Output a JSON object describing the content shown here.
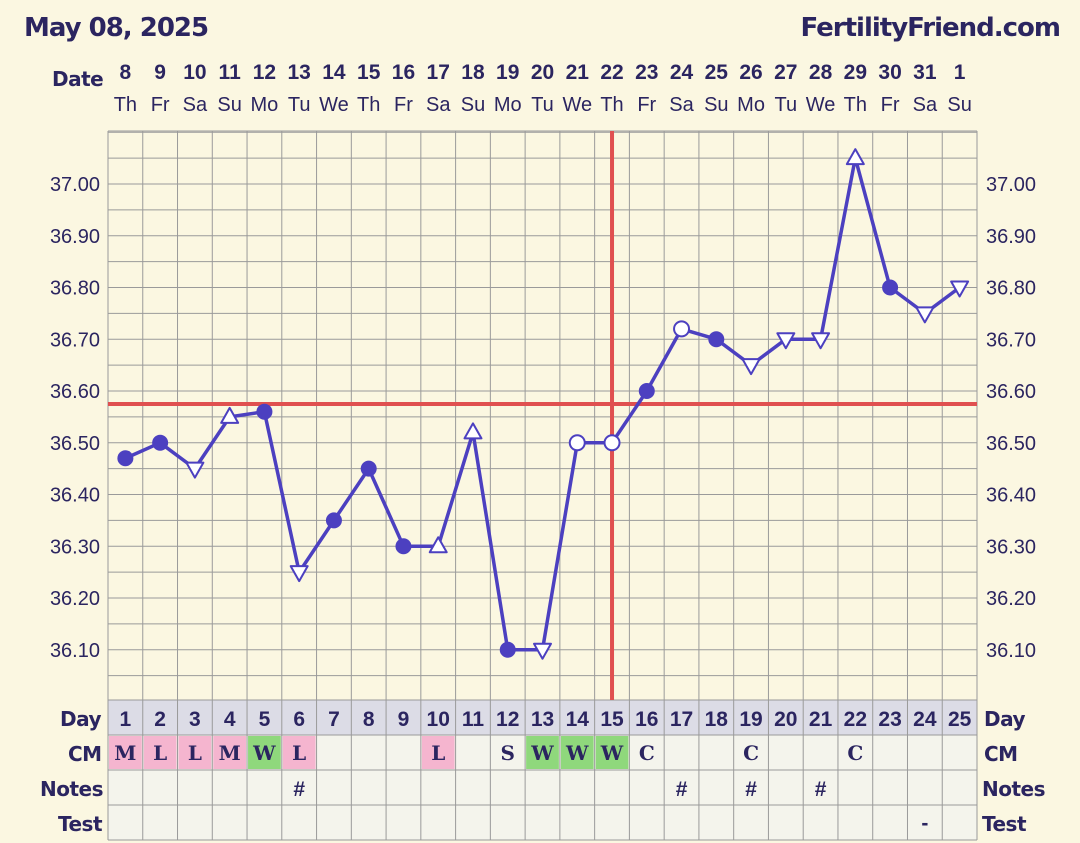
{
  "header": {
    "date": "May 08, 2025",
    "brand": "FertilityFriend.com"
  },
  "labels": {
    "date": "Date",
    "day": "Day",
    "cm": "CM",
    "notes": "Notes",
    "test": "Test"
  },
  "colors": {
    "background": "#fbf7e1",
    "grid": "#9a9a9a",
    "line": "#4c40c0",
    "coverline": "#e05050",
    "cm_pink": "#f5b5cf",
    "cm_green": "#8fd87c",
    "day_row": "#dcdce6",
    "text": "#2b2560"
  },
  "chart_data": {
    "type": "line",
    "dates": [
      "8",
      "9",
      "10",
      "11",
      "12",
      "13",
      "14",
      "15",
      "16",
      "17",
      "18",
      "19",
      "20",
      "21",
      "22",
      "23",
      "24",
      "25",
      "26",
      "27",
      "28",
      "29",
      "30",
      "31",
      "1"
    ],
    "weekdays": [
      "Th",
      "Fr",
      "Sa",
      "Su",
      "Mo",
      "Tu",
      "We",
      "Th",
      "Fr",
      "Sa",
      "Su",
      "Mo",
      "Tu",
      "We",
      "Th",
      "Fr",
      "Sa",
      "Su",
      "Mo",
      "Tu",
      "We",
      "Th",
      "Fr",
      "Sa",
      "Su"
    ],
    "cycle_days": [
      1,
      2,
      3,
      4,
      5,
      6,
      7,
      8,
      9,
      10,
      11,
      12,
      13,
      14,
      15,
      16,
      17,
      18,
      19,
      20,
      21,
      22,
      23,
      24,
      25
    ],
    "temperatures": [
      36.47,
      36.5,
      36.45,
      36.55,
      36.56,
      36.25,
      36.35,
      36.45,
      36.3,
      36.3,
      36.52,
      36.1,
      36.1,
      36.5,
      36.5,
      36.6,
      36.72,
      36.7,
      36.65,
      36.7,
      36.7,
      37.05,
      36.8,
      36.75,
      36.8
    ],
    "markers": [
      "dot",
      "dot",
      "tri-down",
      "tri-up",
      "dot",
      "tri-down",
      "dot",
      "dot",
      "dot",
      "tri-up",
      "tri-up",
      "dot",
      "tri-down",
      "circle",
      "circle",
      "dot",
      "circle",
      "dot",
      "tri-down",
      "tri-down",
      "tri-down",
      "tri-up",
      "dot",
      "tri-down",
      "tri-down"
    ],
    "yticks": [
      "37.00",
      "36.90",
      "36.80",
      "36.70",
      "36.60",
      "36.50",
      "36.40",
      "36.30",
      "36.20",
      "36.10"
    ],
    "ytick_values": [
      37.0,
      36.9,
      36.8,
      36.7,
      36.6,
      36.5,
      36.4,
      36.3,
      36.2,
      36.1
    ],
    "ylim": [
      36.0,
      37.1
    ],
    "coverline": 36.575,
    "ovulation_day": 15,
    "cm": [
      "M",
      "L",
      "L",
      "M",
      "W",
      "L",
      "",
      "",
      "",
      "L",
      "",
      "S",
      "W",
      "W",
      "W",
      "C",
      "",
      "",
      "C",
      "",
      "",
      "C",
      "",
      "",
      ""
    ],
    "cm_colors": [
      "pink",
      "pink",
      "pink",
      "pink",
      "green",
      "pink",
      "",
      "",
      "",
      "pink",
      "",
      "",
      "green",
      "green",
      "green",
      "",
      "",
      "",
      "",
      "",
      "",
      "",
      "",
      "",
      ""
    ],
    "notes": [
      "",
      "",
      "",
      "",
      "",
      "#",
      "",
      "",
      "",
      "",
      "",
      "",
      "",
      "",
      "",
      "",
      "#",
      "",
      "#",
      "",
      "#",
      "",
      "",
      "",
      ""
    ],
    "test": [
      "",
      "",
      "",
      "",
      "",
      "",
      "",
      "",
      "",
      "",
      "",
      "",
      "",
      "",
      "",
      "",
      "",
      "",
      "",
      "",
      "",
      "",
      "",
      "-",
      ""
    ]
  }
}
